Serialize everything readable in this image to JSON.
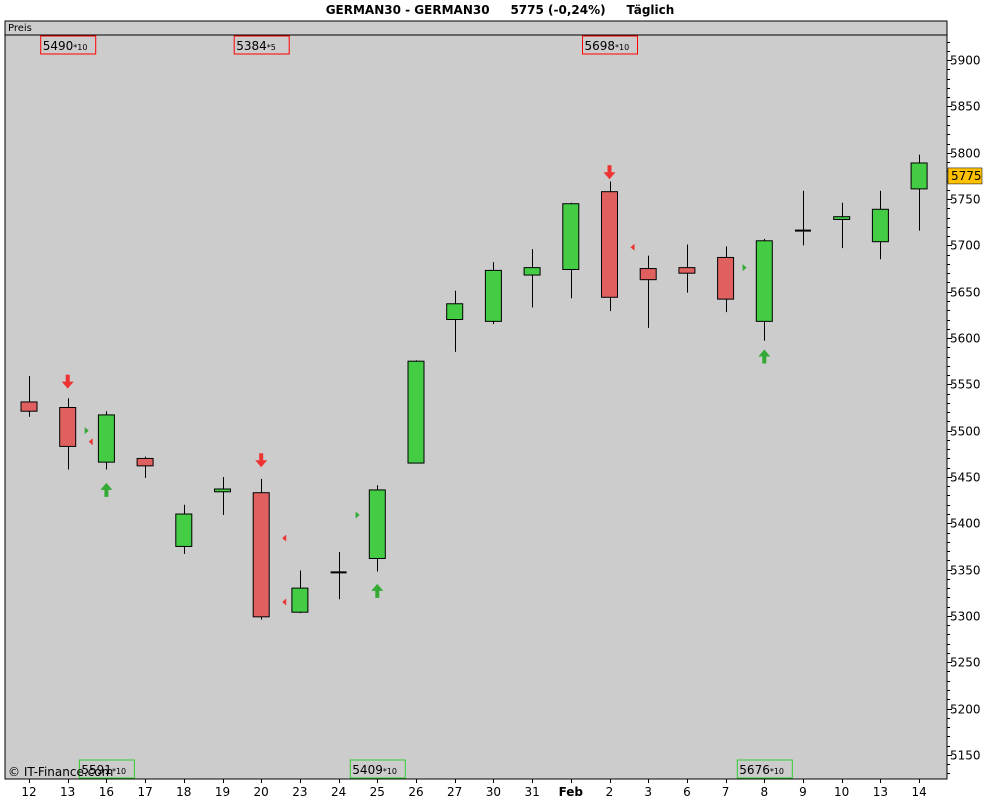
{
  "header": {
    "symbol": "GERMAN30 - GERMAN30",
    "last_price_change": "5775 (-0,24%)",
    "period": "Täglich"
  },
  "copyright": "© IT-Finance.com",
  "colors": {
    "background": "#cccccc",
    "bullish": "#44cc44",
    "bearish": "#e06060",
    "price_tag": "#ffc000",
    "box_red": "#ff0000",
    "box_green": "#33cc33"
  },
  "chart_data": {
    "type": "candlestick",
    "pane_label": "Preis",
    "ylim": [
      5125,
      5925
    ],
    "y_ticks": [
      5150,
      5200,
      5250,
      5300,
      5350,
      5400,
      5450,
      5500,
      5550,
      5600,
      5650,
      5700,
      5750,
      5800,
      5850,
      5900
    ],
    "last_price": "5775",
    "x_labels": [
      "12",
      "13",
      "16",
      "17",
      "18",
      "19",
      "20",
      "23",
      "24",
      "25",
      "26",
      "27",
      "30",
      "31",
      "Feb",
      "2",
      "3",
      "6",
      "7",
      "8",
      "9",
      "10",
      "13",
      "14"
    ],
    "candles": [
      {
        "o": 5531,
        "h": 5559,
        "l": 5515,
        "c": 5521
      },
      {
        "o": 5525,
        "h": 5535,
        "l": 5458,
        "c": 5483
      },
      {
        "o": 5466,
        "h": 5521,
        "l": 5458,
        "c": 5517
      },
      {
        "o": 5470,
        "h": 5472,
        "l": 5449,
        "c": 5462
      },
      {
        "o": 5375,
        "h": 5420,
        "l": 5367,
        "c": 5410
      },
      {
        "o": 5434,
        "h": 5450,
        "l": 5409,
        "c": 5437
      },
      {
        "o": 5433,
        "h": 5448,
        "l": 5296,
        "c": 5299
      },
      {
        "o": 5304,
        "h": 5349,
        "l": 5303,
        "c": 5330
      },
      {
        "o": 5347,
        "h": 5369,
        "l": 5318,
        "c": 5347
      },
      {
        "o": 5362,
        "h": 5441,
        "l": 5348,
        "c": 5436
      },
      {
        "o": 5465,
        "h": 5576,
        "l": 5465,
        "c": 5575
      },
      {
        "o": 5620,
        "h": 5651,
        "l": 5585,
        "c": 5637
      },
      {
        "o": 5618,
        "h": 5682,
        "l": 5615,
        "c": 5673
      },
      {
        "o": 5668,
        "h": 5696,
        "l": 5633,
        "c": 5676
      },
      {
        "o": 5674,
        "h": 5746,
        "l": 5643,
        "c": 5745
      },
      {
        "o": 5758,
        "h": 5769,
        "l": 5629,
        "c": 5644
      },
      {
        "o": 5675,
        "h": 5689,
        "l": 5611,
        "c": 5663
      },
      {
        "o": 5676,
        "h": 5701,
        "l": 5649,
        "c": 5670
      },
      {
        "o": 5687,
        "h": 5699,
        "l": 5628,
        "c": 5642
      },
      {
        "o": 5618,
        "h": 5707,
        "l": 5597,
        "c": 5705
      },
      {
        "o": 5716,
        "h": 5759,
        "l": 5700,
        "c": 5716
      },
      {
        "o": 5728,
        "h": 5746,
        "l": 5697,
        "c": 5731
      },
      {
        "o": 5704,
        "h": 5759,
        "l": 5685,
        "c": 5739
      },
      {
        "o": 5761,
        "h": 5798,
        "l": 5716,
        "c": 5789
      }
    ],
    "signals": [
      {
        "type": "arrow-down",
        "bar": 1,
        "color": "#ee3333",
        "price": 5553
      },
      {
        "type": "arrow-up",
        "bar": 2,
        "color": "#33aa33",
        "price": 5436
      },
      {
        "type": "arrow-down",
        "bar": 6,
        "color": "#ee3333",
        "price": 5468
      },
      {
        "type": "arrow-up",
        "bar": 9,
        "color": "#33aa33",
        "price": 5327
      },
      {
        "type": "arrow-down",
        "bar": 15,
        "color": "#ee3333",
        "price": 5779
      },
      {
        "type": "arrow-up",
        "bar": 19,
        "color": "#33aa33",
        "price": 5580
      }
    ],
    "markers": [
      {
        "side": "right",
        "bar": 1,
        "color": "#33aa33",
        "price": 5500
      },
      {
        "side": "left",
        "bar": 1,
        "color": "#ee3333",
        "price": 5488
      },
      {
        "side": "left",
        "bar": 6,
        "color": "#ee3333",
        "price": 5384
      },
      {
        "side": "left",
        "bar": 6,
        "color": "#ee3333",
        "price": 5315
      },
      {
        "side": "right",
        "bar": 8,
        "color": "#33aa33",
        "price": 5409
      },
      {
        "side": "left",
        "bar": 15,
        "color": "#ee3333",
        "price": 5698
      },
      {
        "side": "right",
        "bar": 18,
        "color": "#33aa33",
        "price": 5676
      }
    ],
    "level_boxes": [
      {
        "value": "5490",
        "suffix": "*10",
        "color": "red",
        "position": "top",
        "bar": 1
      },
      {
        "value": "5384",
        "suffix": "*5",
        "color": "red",
        "position": "top",
        "bar": 6
      },
      {
        "value": "5698",
        "suffix": "*10",
        "color": "red",
        "position": "top",
        "bar": 15
      },
      {
        "value": "5591",
        "suffix": "*10",
        "color": "green",
        "position": "bottom",
        "bar": 2
      },
      {
        "value": "5409",
        "suffix": "*10",
        "color": "green",
        "position": "bottom",
        "bar": 9
      },
      {
        "value": "5676",
        "suffix": "*10",
        "color": "green",
        "position": "bottom",
        "bar": 19
      }
    ]
  }
}
